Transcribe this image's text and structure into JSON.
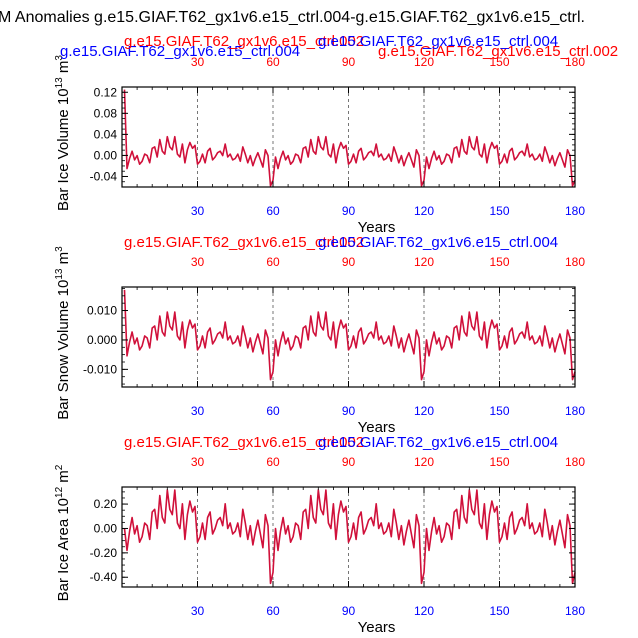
{
  "page": {
    "title": "M Anomalies g.e15.GIAF.T62_gx1v6.e15_ctrl.004-g.e15.GIAF.T62_gx1v6.e15_ctrl."
  },
  "colors": {
    "blue": "#0000ff",
    "red": "#ff0000",
    "line": "#d0103a",
    "axis": "#000000",
    "grid": "#555555"
  },
  "chart_data": [
    {
      "type": "line",
      "ylabel": "Bar Ice Volume 10^13 m^3",
      "ylabel_main": "Bar Ice Volume 10",
      "ylabel_exp": "13",
      "ylabel_unit": "m",
      "ylabel_unit_exp": "3",
      "xlabel": "Years",
      "top_label_left": "g.e15.GIAF.T62_gx1v6.e15_ctrl.004",
      "top_label_center": "g.e15.GIAF.T62_gx1v6.e15_ctrl.002",
      "top_label_right": "g.e15.GIAF.T62_gx1v6.e15_ctrl.002",
      "top_label_center2": "g.e15.GIAF.T62_gx1v6.e15_ctrl.004",
      "xlim": [
        0,
        180
      ],
      "ylim": [
        -0.06,
        0.13
      ],
      "yticks": [
        -0.04,
        0.0,
        0.04,
        0.08,
        0.12
      ],
      "ytick_labels": [
        "-0.04",
        "0.00",
        "0.04",
        "0.08",
        "0.12"
      ],
      "xticks": [
        30,
        60,
        90,
        120,
        150,
        180
      ],
      "xtick_labels": [
        "30",
        "60",
        "90",
        "120",
        "150",
        "180"
      ],
      "gridlines_x": [
        30,
        60,
        90,
        120,
        150
      ],
      "amplitude": 0.055,
      "offset": -0.003,
      "spike": 0.125
    },
    {
      "type": "line",
      "ylabel": "Bar Snow Volume 10^13 m^3",
      "ylabel_main": "Bar Snow Volume 10",
      "ylabel_exp": "13",
      "ylabel_unit": "m",
      "ylabel_unit_exp": "3",
      "xlabel": "Years",
      "top_label_left": "g.e15.GIAF.T62_gx1v6.e15_ctrl.002",
      "top_label_right": "g.e15.GIAF.T62_gx1v6.e15_ctrl.004",
      "xlim": [
        0,
        180
      ],
      "ylim": [
        -0.016,
        0.018
      ],
      "yticks": [
        -0.01,
        0.0,
        0.01
      ],
      "ytick_labels": [
        "-0.010",
        "0.000",
        "0.010"
      ],
      "xticks": [
        30,
        60,
        90,
        120,
        150,
        180
      ],
      "xtick_labels": [
        "30",
        "60",
        "90",
        "120",
        "150",
        "180"
      ],
      "gridlines_x": [
        30,
        60,
        90,
        120,
        150
      ],
      "amplitude": 0.0135,
      "offset": 0.0,
      "spike": 0.017
    },
    {
      "type": "line",
      "ylabel": "Bar Ice Area 10^12 m^2",
      "ylabel_main": "Bar Ice Area 10",
      "ylabel_exp": "12",
      "ylabel_unit": "m",
      "ylabel_unit_exp": "2",
      "xlabel": "Years",
      "top_label_left": "g.e15.GIAF.T62_gx1v6.e15_ctrl.002",
      "top_label_right": "g.e15.GIAF.T62_gx1v6.e15_ctrl.004",
      "xlim": [
        0,
        180
      ],
      "ylim": [
        -0.48,
        0.34
      ],
      "yticks": [
        -0.4,
        -0.2,
        0.0,
        0.2
      ],
      "ytick_labels": [
        "-0.40",
        "-0.20",
        "0.00",
        "0.20"
      ],
      "xticks": [
        30,
        60,
        90,
        120,
        150,
        180
      ],
      "xtick_labels": [
        "30",
        "60",
        "90",
        "120",
        "150",
        "180"
      ],
      "gridlines_x": [
        30,
        60,
        90,
        120,
        150
      ],
      "amplitude": 0.45,
      "offset": 0.0,
      "spike": null
    }
  ],
  "base_pattern": [
    0.0,
    -0.4,
    -0.05,
    0.2,
    -0.1,
    0.05,
    -0.25,
    -0.15,
    0.1,
    0.05,
    -0.2,
    0.3,
    0.35,
    0.0,
    0.6,
    0.2,
    0.1,
    0.7,
    0.35,
    0.25,
    0.7,
    0.1,
    0.0,
    0.45,
    -0.2,
    0.25,
    0.5,
    0.3,
    0.4,
    -0.25,
    -0.15,
    0.1,
    -0.2,
    0.2,
    0.3,
    -0.1,
    0.0,
    0.15,
    0.2,
    0.05,
    0.45,
    0.0,
    0.1,
    -0.1,
    -0.05,
    0.1,
    -0.15,
    0.35,
    0.1,
    -0.2,
    0.05,
    -0.3,
    -0.05,
    0.15,
    -0.1,
    -0.35,
    0.25,
    0.05,
    -1.0,
    -0.8
  ]
}
